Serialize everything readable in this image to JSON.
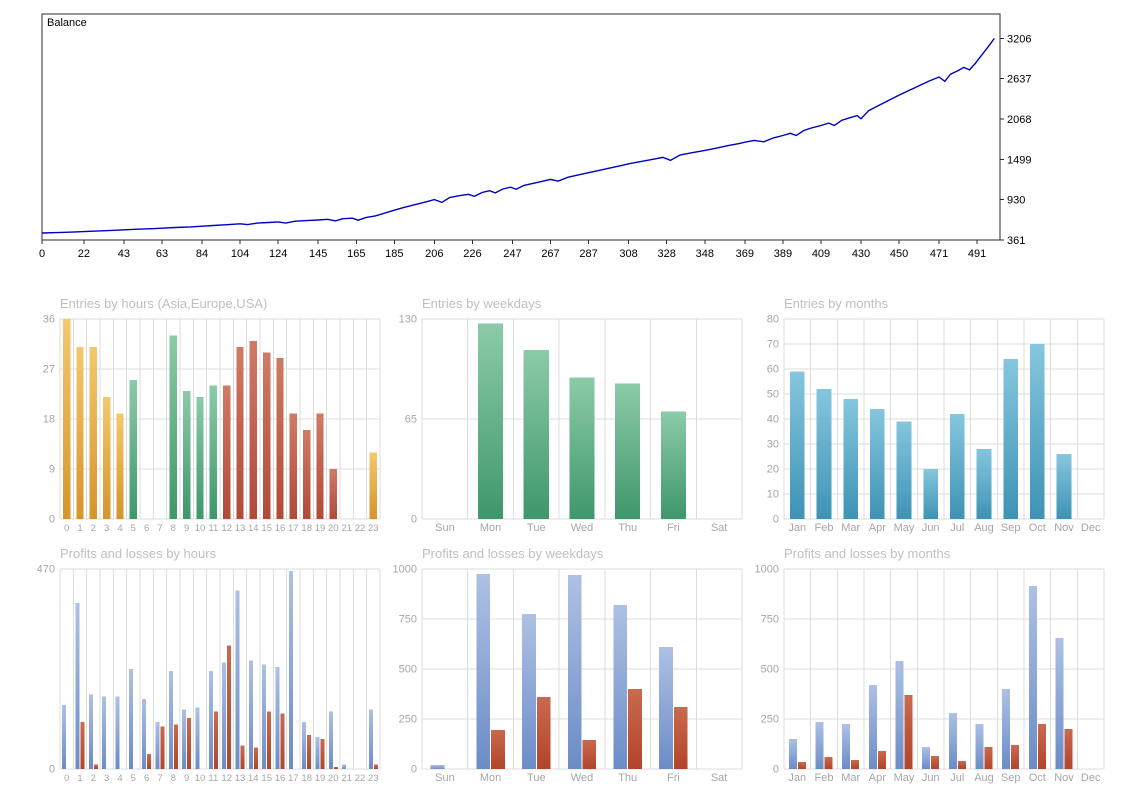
{
  "palette": {
    "orange": {
      "top": "#F3C96E",
      "bottom": "#D6942C"
    },
    "green": {
      "top": "#8CCBA8",
      "bottom": "#3F976B"
    },
    "teal": {
      "top": "#86C6DE",
      "bottom": "#3D93B5"
    },
    "red": {
      "top": "#D07A65",
      "bottom": "#B04A38"
    },
    "blue": {
      "top": "#AEC1E4",
      "bottom": "#6C8CC7"
    },
    "lossred": {
      "top": "#C96A4F",
      "bottom": "#B2442A"
    }
  },
  "chart_data": [
    {
      "type": "line",
      "title": "Balance",
      "line_color": "#0000C0",
      "xlim": [
        0,
        503
      ],
      "ylim": [
        361,
        3550
      ],
      "x_ticks": [
        0,
        22,
        43,
        63,
        84,
        104,
        124,
        145,
        165,
        185,
        206,
        226,
        247,
        267,
        287,
        308,
        328,
        348,
        369,
        389,
        409,
        430,
        450,
        471,
        491
      ],
      "y_ticks": [
        361,
        930,
        1499,
        2068,
        2637,
        3206
      ],
      "points": [
        [
          0,
          460
        ],
        [
          8,
          466
        ],
        [
          16,
          473
        ],
        [
          22,
          480
        ],
        [
          30,
          490
        ],
        [
          38,
          498
        ],
        [
          43,
          505
        ],
        [
          50,
          513
        ],
        [
          58,
          521
        ],
        [
          63,
          528
        ],
        [
          70,
          537
        ],
        [
          78,
          546
        ],
        [
          84,
          556
        ],
        [
          90,
          566
        ],
        [
          96,
          576
        ],
        [
          104,
          589
        ],
        [
          108,
          578
        ],
        [
          113,
          599
        ],
        [
          119,
          608
        ],
        [
          124,
          616
        ],
        [
          128,
          600
        ],
        [
          133,
          626
        ],
        [
          139,
          635
        ],
        [
          145,
          643
        ],
        [
          150,
          653
        ],
        [
          154,
          631
        ],
        [
          158,
          661
        ],
        [
          163,
          669
        ],
        [
          166,
          641
        ],
        [
          170,
          677
        ],
        [
          175,
          701
        ],
        [
          180,
          741
        ],
        [
          185,
          781
        ],
        [
          190,
          821
        ],
        [
          196,
          861
        ],
        [
          202,
          901
        ],
        [
          206,
          931
        ],
        [
          210,
          892
        ],
        [
          214,
          961
        ],
        [
          219,
          986
        ],
        [
          224,
          1006
        ],
        [
          227,
          976
        ],
        [
          231,
          1031
        ],
        [
          235,
          1056
        ],
        [
          238,
          1026
        ],
        [
          242,
          1081
        ],
        [
          246,
          1106
        ],
        [
          249,
          1076
        ],
        [
          253,
          1131
        ],
        [
          258,
          1161
        ],
        [
          263,
          1191
        ],
        [
          267,
          1216
        ],
        [
          271,
          1191
        ],
        [
          276,
          1246
        ],
        [
          281,
          1276
        ],
        [
          287,
          1311
        ],
        [
          293,
          1346
        ],
        [
          299,
          1381
        ],
        [
          305,
          1416
        ],
        [
          308,
          1436
        ],
        [
          314,
          1466
        ],
        [
          320,
          1496
        ],
        [
          326,
          1526
        ],
        [
          330,
          1486
        ],
        [
          335,
          1561
        ],
        [
          341,
          1591
        ],
        [
          348,
          1626
        ],
        [
          354,
          1656
        ],
        [
          360,
          1691
        ],
        [
          366,
          1721
        ],
        [
          369,
          1741
        ],
        [
          374,
          1766
        ],
        [
          379,
          1746
        ],
        [
          384,
          1801
        ],
        [
          389,
          1836
        ],
        [
          393,
          1866
        ],
        [
          396,
          1836
        ],
        [
          400,
          1906
        ],
        [
          404,
          1941
        ],
        [
          409,
          1976
        ],
        [
          413,
          2011
        ],
        [
          416,
          1976
        ],
        [
          420,
          2051
        ],
        [
          424,
          2086
        ],
        [
          428,
          2116
        ],
        [
          430,
          2071
        ],
        [
          434,
          2186
        ],
        [
          438,
          2241
        ],
        [
          442,
          2296
        ],
        [
          446,
          2351
        ],
        [
          450,
          2406
        ],
        [
          454,
          2456
        ],
        [
          458,
          2506
        ],
        [
          462,
          2556
        ],
        [
          466,
          2606
        ],
        [
          471,
          2661
        ],
        [
          474,
          2601
        ],
        [
          477,
          2701
        ],
        [
          481,
          2751
        ],
        [
          484,
          2796
        ],
        [
          487,
          2761
        ],
        [
          490,
          2851
        ],
        [
          492,
          2921
        ],
        [
          494,
          2991
        ],
        [
          496,
          3061
        ],
        [
          498,
          3131
        ],
        [
          500,
          3206
        ]
      ]
    },
    {
      "type": "bar",
      "title": "Entries by hours (Asia,Europe,USA)",
      "categories": [
        "0",
        "1",
        "2",
        "3",
        "4",
        "5",
        "6",
        "7",
        "8",
        "9",
        "10",
        "11",
        "12",
        "13",
        "14",
        "15",
        "16",
        "17",
        "18",
        "19",
        "20",
        "21",
        "22",
        "23"
      ],
      "values": [
        36,
        31,
        31,
        22,
        19,
        25,
        0,
        0,
        33,
        23,
        22,
        24,
        24,
        31,
        32,
        30,
        29,
        19,
        16,
        19,
        9,
        0,
        0,
        12
      ],
      "bar_colors": [
        "orange",
        "orange",
        "orange",
        "orange",
        "orange",
        "green",
        "green",
        "green",
        "green",
        "green",
        "green",
        "green",
        "red",
        "red",
        "red",
        "red",
        "red",
        "red",
        "red",
        "red",
        "red",
        "red",
        "red",
        "orange"
      ],
      "y_ticks": [
        0,
        9,
        18,
        27,
        36
      ],
      "ylim": [
        0,
        36
      ],
      "small_x": true
    },
    {
      "type": "bar",
      "title": "Entries by weekdays",
      "categories": [
        "Sun",
        "Mon",
        "Tue",
        "Wed",
        "Thu",
        "Fri",
        "Sat"
      ],
      "values": [
        0,
        127,
        110,
        92,
        88,
        70,
        0
      ],
      "bar_color": "green",
      "y_ticks": [
        0,
        65,
        130
      ],
      "ylim": [
        0,
        130
      ]
    },
    {
      "type": "bar",
      "title": "Entries by months",
      "categories": [
        "Jan",
        "Feb",
        "Mar",
        "Apr",
        "May",
        "Jun",
        "Jul",
        "Aug",
        "Sep",
        "Oct",
        "Nov",
        "Dec"
      ],
      "values": [
        59,
        52,
        48,
        44,
        39,
        20,
        42,
        28,
        64,
        70,
        26,
        0
      ],
      "bar_color": "teal",
      "y_ticks": [
        0,
        10,
        20,
        30,
        40,
        50,
        60,
        70,
        80
      ],
      "ylim": [
        0,
        80
      ]
    },
    {
      "type": "grouped_bar",
      "title": "Profits and losses by hours",
      "categories": [
        "0",
        "1",
        "2",
        "3",
        "4",
        "5",
        "6",
        "7",
        "8",
        "9",
        "10",
        "11",
        "12",
        "13",
        "14",
        "15",
        "16",
        "17",
        "18",
        "19",
        "20",
        "21",
        "22",
        "23"
      ],
      "series": [
        {
          "name": "profit",
          "color": "blue",
          "values": [
            150,
            390,
            175,
            170,
            170,
            235,
            165,
            110,
            230,
            140,
            145,
            230,
            250,
            420,
            255,
            245,
            240,
            465,
            110,
            75,
            135,
            10,
            0,
            140
          ]
        },
        {
          "name": "loss",
          "color": "lossred",
          "values": [
            0,
            110,
            10,
            0,
            0,
            0,
            35,
            100,
            105,
            120,
            0,
            135,
            290,
            55,
            50,
            135,
            130,
            0,
            80,
            70,
            5,
            0,
            0,
            10
          ]
        }
      ],
      "y_ticks": [
        0,
        470
      ],
      "ylim": [
        0,
        470
      ],
      "small_x": true
    },
    {
      "type": "grouped_bar",
      "title": "Profits and losses by weekdays",
      "categories": [
        "Sun",
        "Mon",
        "Tue",
        "Wed",
        "Thu",
        "Fri",
        "Sat"
      ],
      "series": [
        {
          "name": "profit",
          "color": "blue",
          "values": [
            20,
            975,
            775,
            970,
            820,
            610,
            0
          ]
        },
        {
          "name": "loss",
          "color": "lossred",
          "values": [
            0,
            195,
            360,
            145,
            400,
            310,
            0
          ]
        }
      ],
      "y_ticks": [
        0,
        250,
        500,
        750,
        1000
      ],
      "ylim": [
        0,
        1000
      ]
    },
    {
      "type": "grouped_bar",
      "title": "Profits and losses by months",
      "categories": [
        "Jan",
        "Feb",
        "Mar",
        "Apr",
        "May",
        "Jun",
        "Jul",
        "Aug",
        "Sep",
        "Oct",
        "Nov",
        "Dec"
      ],
      "series": [
        {
          "name": "profit",
          "color": "blue",
          "values": [
            150,
            235,
            225,
            420,
            540,
            110,
            280,
            225,
            400,
            915,
            655,
            0
          ]
        },
        {
          "name": "loss",
          "color": "lossred",
          "values": [
            35,
            60,
            45,
            90,
            370,
            65,
            40,
            110,
            120,
            225,
            200,
            0
          ]
        }
      ],
      "y_ticks": [
        0,
        250,
        500,
        750,
        1000
      ],
      "ylim": [
        0,
        1000
      ]
    }
  ]
}
